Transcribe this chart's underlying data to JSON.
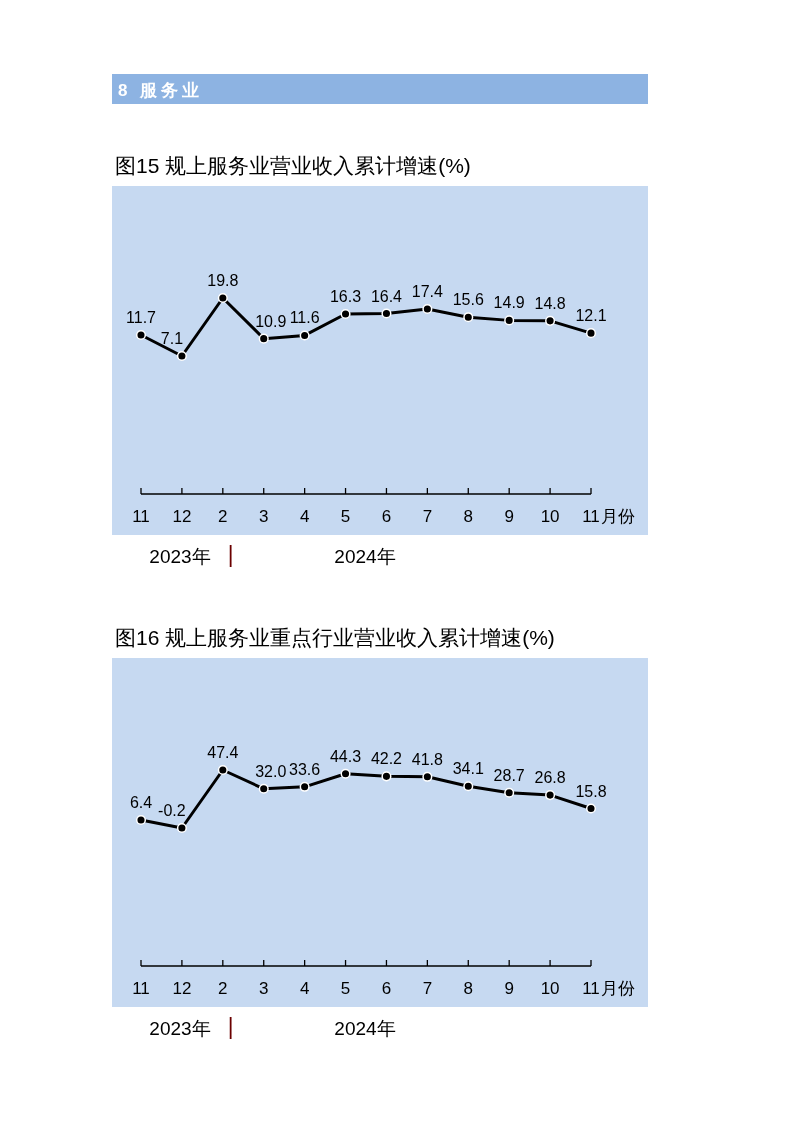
{
  "chart_data": [
    {
      "type": "other",
      "title": "8 服务业"
    },
    {
      "type": "line",
      "title": "图15 规上服务业营业收入累计增速(%)",
      "xlabel": "月份",
      "categories": [
        "11",
        "12",
        "2",
        "3",
        "4",
        "5",
        "6",
        "7",
        "8",
        "9",
        "10",
        "11"
      ],
      "series": [
        {
          "color": "#000000",
          "values": [
            11.7,
            7.1,
            19.8,
            10.9,
            11.6,
            16.3,
            16.4,
            17.4,
            15.6,
            14.9,
            14.8,
            12.1
          ]
        }
      ],
      "data_labels": true,
      "marker": "circle",
      "line_style": "solid",
      "annotations": [
        "2023年",
        "2024年"
      ]
    },
    {
      "type": "line",
      "title": "图16 规上服务业重点行业营业收入累计增速(%)",
      "xlabel": "月份",
      "categories": [
        "11",
        "12",
        "2",
        "3",
        "4",
        "5",
        "6",
        "7",
        "8",
        "9",
        "10",
        "11"
      ],
      "series": [
        {
          "color": "#000000",
          "values": [
            6.4,
            -0.2,
            47.4,
            32.0,
            33.6,
            44.3,
            42.2,
            41.8,
            34.1,
            28.7,
            26.8,
            15.8
          ],
          "value_labels": [
            "6.4",
            "-0.2",
            "47.4",
            "32.0",
            "33.6",
            "44.3",
            "42.2",
            "41.8",
            "34.1",
            "28.7",
            "26.8",
            "15.8"
          ]
        }
      ],
      "marker": "circle",
      "line_style": "solid",
      "annotations": [
        "2023年",
        "2024年"
      ]
    }
  ]
}
